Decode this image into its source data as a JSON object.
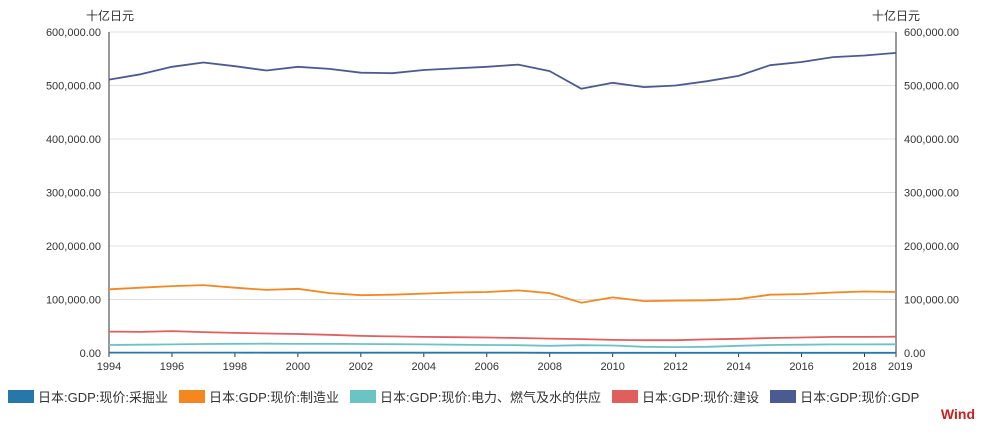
{
  "chart_data": {
    "type": "line",
    "left_unit": "十亿日元",
    "right_unit": "十亿日元",
    "x": [
      1994,
      1995,
      1996,
      1997,
      1998,
      1999,
      2000,
      2001,
      2002,
      2003,
      2004,
      2005,
      2006,
      2007,
      2008,
      2009,
      2010,
      2011,
      2012,
      2013,
      2014,
      2015,
      2016,
      2017,
      2018,
      2019
    ],
    "x_ticks": [
      1994,
      1996,
      1998,
      2000,
      2002,
      2004,
      2006,
      2008,
      2010,
      2012,
      2014,
      2016,
      2018,
      2019
    ],
    "y_ticks": [
      0,
      100000,
      200000,
      300000,
      400000,
      500000,
      600000
    ],
    "y_tick_labels": [
      "0.00",
      "100,000.00",
      "200,000.00",
      "300,000.00",
      "400,000.00",
      "500,000.00",
      "600,000.00"
    ],
    "ylim": [
      0,
      600000
    ],
    "series": [
      {
        "name": "日本:GDP:现价:采掘业",
        "color": "#2778a8",
        "values": [
          800,
          780,
          760,
          740,
          700,
          650,
          620,
          600,
          560,
          540,
          520,
          510,
          500,
          480,
          460,
          420,
          420,
          400,
          380,
          380,
          370,
          370,
          360,
          360,
          350,
          350
        ]
      },
      {
        "name": "日本:GDP:现价:制造业",
        "color": "#f5871f",
        "values": [
          119000,
          122000,
          125000,
          127000,
          122000,
          118000,
          120000,
          112000,
          108000,
          109000,
          111000,
          113000,
          114000,
          117000,
          112000,
          94000,
          104000,
          97000,
          98000,
          98500,
          101000,
          109000,
          110000,
          113000,
          115000,
          114000
        ]
      },
      {
        "name": "日本:GDP:现价:电力、燃气及水的供应",
        "color": "#6cc3c6",
        "values": [
          15000,
          15500,
          16000,
          16800,
          17200,
          17300,
          17000,
          17200,
          16800,
          16500,
          16000,
          15500,
          15000,
          14500,
          13500,
          14500,
          14000,
          11500,
          11000,
          11500,
          13500,
          15000,
          15500,
          16000,
          16000,
          16200
        ]
      },
      {
        "name": "日本:GDP:现价:建设",
        "color": "#e05e5c",
        "values": [
          40000,
          39500,
          41000,
          39000,
          37500,
          36500,
          35500,
          34000,
          32000,
          31000,
          30000,
          29500,
          29000,
          28000,
          27000,
          26000,
          24500,
          24000,
          24000,
          25500,
          26500,
          28000,
          29000,
          30000,
          30000,
          30500
        ]
      },
      {
        "name": "日本:GDP:现价:GDP",
        "color": "#4c5a94",
        "values": [
          511000,
          521000,
          535000,
          543000,
          536000,
          528000,
          535000,
          531000,
          524000,
          523000,
          529000,
          532000,
          535000,
          539000,
          527000,
          494000,
          505000,
          497000,
          500000,
          508000,
          518000,
          538000,
          544000,
          553000,
          556000,
          561000
        ]
      }
    ],
    "legend_position": "bottom-left",
    "watermark": "Wind"
  }
}
